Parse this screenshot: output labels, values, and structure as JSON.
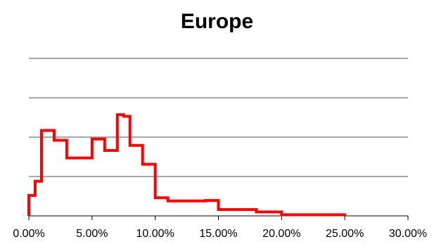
{
  "chart_data": {
    "type": "line",
    "step": true,
    "title": "Europe",
    "xlabel": "",
    "ylabel": "",
    "xlim": [
      0,
      0.3
    ],
    "ylim": [
      0,
      4
    ],
    "y_ticks_labeled": false,
    "x_ticks": [
      0,
      0.05,
      0.1,
      0.15,
      0.2,
      0.25,
      0.3
    ],
    "x_tick_labels": [
      "0.00%",
      "5.00%",
      "10.00%",
      "15.00%",
      "20.00%",
      "25.00%",
      "30.00%"
    ],
    "grid": {
      "horizontal": true,
      "vertical": false,
      "lines_at": [
        1,
        2,
        3
      ]
    },
    "legend": "none",
    "series": [
      {
        "color": "#ff0000",
        "points": [
          [
            0.0,
            0.0
          ],
          [
            0.0,
            0.52
          ],
          [
            0.002,
            0.52
          ],
          [
            0.002,
            0.52
          ],
          [
            0.005,
            0.52
          ],
          [
            0.005,
            0.88
          ],
          [
            0.01,
            0.88
          ],
          [
            0.01,
            2.17
          ],
          [
            0.02,
            2.17
          ],
          [
            0.02,
            1.92
          ],
          [
            0.03,
            1.92
          ],
          [
            0.03,
            1.47
          ],
          [
            0.05,
            1.47
          ],
          [
            0.05,
            1.95
          ],
          [
            0.06,
            1.95
          ],
          [
            0.06,
            1.66
          ],
          [
            0.07,
            1.66
          ],
          [
            0.07,
            2.57
          ],
          [
            0.075,
            2.57
          ],
          [
            0.075,
            2.53
          ],
          [
            0.08,
            2.53
          ],
          [
            0.08,
            1.79
          ],
          [
            0.09,
            1.79
          ],
          [
            0.09,
            1.31
          ],
          [
            0.1,
            1.31
          ],
          [
            0.1,
            0.46
          ],
          [
            0.11,
            0.46
          ],
          [
            0.11,
            0.38
          ],
          [
            0.14,
            0.38
          ],
          [
            0.14,
            0.39
          ],
          [
            0.15,
            0.39
          ],
          [
            0.15,
            0.16
          ],
          [
            0.18,
            0.16
          ],
          [
            0.18,
            0.1
          ],
          [
            0.2,
            0.1
          ],
          [
            0.2,
            0.03
          ],
          [
            0.25,
            0.03
          ],
          [
            0.25,
            0.0
          ]
        ]
      }
    ]
  }
}
